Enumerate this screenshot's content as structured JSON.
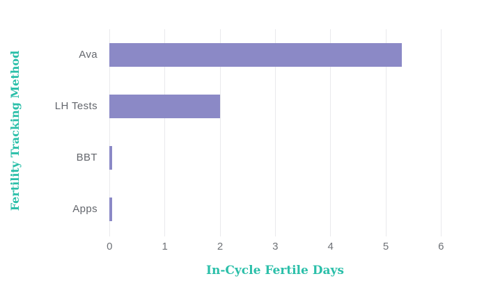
{
  "chart_data": {
    "type": "bar",
    "orientation": "horizontal",
    "categories": [
      "Ava",
      "LH Tests",
      "BBT",
      "Apps"
    ],
    "values": [
      5.3,
      2.0,
      0.05,
      0.05
    ],
    "title": "",
    "xlabel": "In-Cycle Fertile Days",
    "ylabel": "Fertility Tracking Method",
    "xlim": [
      0,
      6
    ],
    "xticks": [
      0,
      1,
      2,
      3,
      4,
      5,
      6
    ],
    "grid": "vertical-only",
    "legend": "none",
    "colors": {
      "bar": "#8b89c6",
      "axis_title": "#2bbfa9",
      "tick_label": "#6e7176",
      "category_label": "#63666c",
      "gridline": "#e9e9ec",
      "background": "#ffffff"
    }
  }
}
